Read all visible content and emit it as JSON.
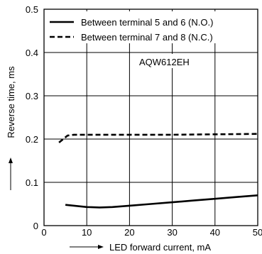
{
  "chart_data": {
    "type": "line",
    "title": "",
    "xlabel": "LED forward current, mA",
    "ylabel": "Reverse time, ms",
    "xlim": [
      0,
      50
    ],
    "ylim": [
      0,
      0.5
    ],
    "x_ticks": [
      0,
      10,
      20,
      30,
      40,
      50
    ],
    "x_tick_labels": [
      "0",
      "10",
      "20",
      "30",
      "40",
      "50"
    ],
    "y_ticks": [
      0,
      0.1,
      0.2,
      0.3,
      0.4,
      0.5
    ],
    "y_tick_labels": [
      "0",
      "0.1",
      "0.2",
      "0.3",
      "0.4",
      "0.5"
    ],
    "grid": true,
    "legend_position": "top-left",
    "annotation": "AQW612EH",
    "series": [
      {
        "name": "Between terminal 5 and 6 (N.O.)",
        "style": "solid",
        "color": "#000000",
        "x": [
          5,
          8,
          10,
          13,
          16,
          20,
          25,
          30,
          35,
          40,
          45,
          50
        ],
        "y": [
          0.048,
          0.045,
          0.043,
          0.042,
          0.043,
          0.046,
          0.05,
          0.054,
          0.058,
          0.062,
          0.066,
          0.07
        ]
      },
      {
        "name": "Between terminal 7 and 8 (N.C.)",
        "style": "dashed",
        "color": "#000000",
        "x": [
          3.5,
          4.5,
          5.5,
          7,
          10,
          20,
          30,
          40,
          50
        ],
        "y": [
          0.192,
          0.2,
          0.208,
          0.21,
          0.21,
          0.21,
          0.21,
          0.211,
          0.212
        ]
      }
    ]
  }
}
